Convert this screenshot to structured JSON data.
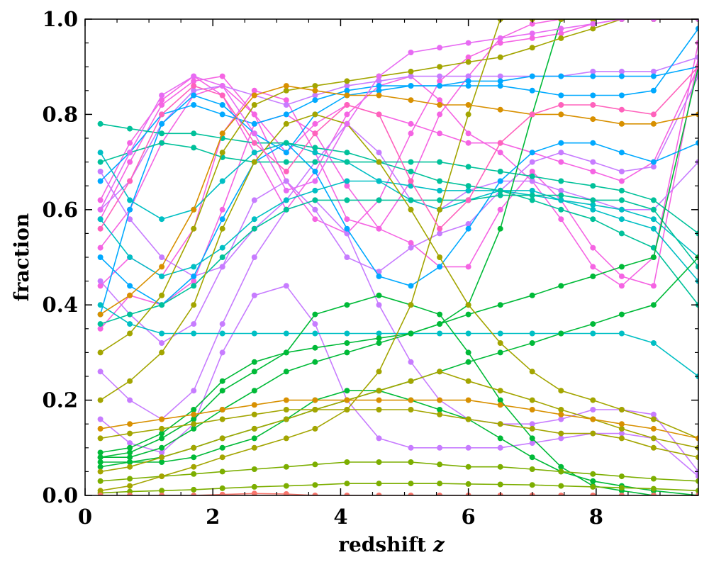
{
  "chart_data": {
    "type": "line",
    "title": "",
    "xlabel": "redshift",
    "xlabel_symbol": "z",
    "ylabel": "fraction",
    "xlim": [
      0,
      9.6
    ],
    "ylim": [
      0.0,
      1.0
    ],
    "xticks": [
      0,
      2,
      4,
      6,
      8
    ],
    "xtick_labels": [
      "0",
      "2",
      "4",
      "6",
      "8"
    ],
    "yticks": [
      0.0,
      0.2,
      0.4,
      0.6,
      0.8,
      1.0
    ],
    "ytick_labels": [
      "0.0",
      "0.2",
      "0.4",
      "0.6",
      "0.8",
      "1.0"
    ],
    "grid": false,
    "legend": false,
    "markers": "circle",
    "x": [
      0.24,
      0.7,
      1.2,
      1.7,
      2.15,
      2.65,
      3.15,
      3.6,
      4.1,
      4.6,
      5.1,
      5.55,
      6.0,
      6.5,
      7.0,
      7.45,
      7.95,
      8.4,
      8.9,
      9.6
    ],
    "series": [
      {
        "color": "#f564e3",
        "values": [
          0.58,
          0.7,
          0.82,
          0.87,
          0.88,
          0.8,
          0.66,
          0.58,
          0.55,
          0.62,
          0.76,
          0.87,
          0.92,
          0.95,
          0.96,
          0.97,
          0.99,
          1.0,
          1.0,
          1.0
        ]
      },
      {
        "color": "#f564e3",
        "values": [
          0.44,
          0.5,
          0.46,
          0.56,
          0.76,
          0.85,
          0.83,
          0.72,
          0.58,
          0.56,
          0.66,
          0.8,
          0.88,
          0.96,
          0.99,
          1.0,
          1.0,
          1.0,
          1.0,
          1.0
        ]
      },
      {
        "color": "#f564e3",
        "values": [
          0.35,
          0.42,
          0.4,
          0.45,
          0.6,
          0.78,
          0.8,
          0.76,
          0.65,
          0.56,
          0.53,
          0.48,
          0.48,
          0.6,
          0.68,
          0.62,
          0.52,
          0.46,
          0.44,
          0.92
        ]
      },
      {
        "color": "#f564e3",
        "values": [
          0.62,
          0.74,
          0.83,
          0.88,
          0.84,
          0.72,
          0.6,
          0.68,
          0.8,
          0.86,
          0.88,
          0.83,
          0.76,
          0.72,
          0.66,
          0.58,
          0.48,
          0.44,
          0.5,
          0.95
        ]
      },
      {
        "color": "#f564e3",
        "values": [
          0.52,
          0.6,
          0.74,
          0.84,
          0.86,
          0.8,
          0.72,
          0.78,
          0.82,
          0.8,
          0.78,
          0.76,
          0.74,
          0.74,
          0.72,
          0.7,
          0.68,
          0.66,
          0.7,
          0.9
        ]
      },
      {
        "color": "#c77cff",
        "values": [
          0.45,
          0.38,
          0.32,
          0.36,
          0.48,
          0.62,
          0.66,
          0.6,
          0.5,
          0.47,
          0.52,
          0.55,
          0.57,
          0.64,
          0.7,
          0.72,
          0.7,
          0.68,
          0.69,
          0.88
        ]
      },
      {
        "color": "#c77cff",
        "values": [
          0.6,
          0.66,
          0.78,
          0.85,
          0.86,
          0.84,
          0.82,
          0.84,
          0.86,
          0.87,
          0.88,
          0.88,
          0.88,
          0.88,
          0.88,
          0.88,
          0.89,
          0.89,
          0.89,
          0.92
        ]
      },
      {
        "color": "#c77cff",
        "values": [
          0.16,
          0.11,
          0.09,
          0.15,
          0.3,
          0.42,
          0.44,
          0.36,
          0.2,
          0.12,
          0.1,
          0.1,
          0.1,
          0.1,
          0.11,
          0.12,
          0.13,
          0.13,
          0.12,
          0.04
        ]
      },
      {
        "color": "#c77cff",
        "values": [
          0.26,
          0.2,
          0.16,
          0.22,
          0.36,
          0.5,
          0.6,
          0.62,
          0.55,
          0.4,
          0.28,
          0.2,
          0.16,
          0.15,
          0.15,
          0.16,
          0.18,
          0.18,
          0.17,
          0.05
        ]
      },
      {
        "color": "#c77cff",
        "values": [
          0.68,
          0.58,
          0.5,
          0.46,
          0.48,
          0.56,
          0.62,
          0.7,
          0.78,
          0.72,
          0.62,
          0.6,
          0.64,
          0.66,
          0.66,
          0.64,
          0.62,
          0.6,
          0.6,
          0.7
        ]
      },
      {
        "color": "#00a9ff",
        "values": [
          0.38,
          0.6,
          0.78,
          0.84,
          0.82,
          0.76,
          0.72,
          0.8,
          0.84,
          0.85,
          0.86,
          0.86,
          0.87,
          0.87,
          0.88,
          0.88,
          0.88,
          0.88,
          0.88,
          0.9
        ]
      },
      {
        "color": "#00a9ff",
        "values": [
          0.5,
          0.44,
          0.4,
          0.46,
          0.58,
          0.7,
          0.74,
          0.68,
          0.56,
          0.46,
          0.44,
          0.48,
          0.56,
          0.66,
          0.72,
          0.74,
          0.74,
          0.72,
          0.7,
          0.74
        ]
      },
      {
        "color": "#00a9ff",
        "values": [
          0.66,
          0.72,
          0.8,
          0.82,
          0.8,
          0.78,
          0.8,
          0.83,
          0.85,
          0.86,
          0.86,
          0.86,
          0.86,
          0.86,
          0.85,
          0.84,
          0.84,
          0.84,
          0.85,
          0.98
        ]
      },
      {
        "color": "#00bfc4",
        "values": [
          0.72,
          0.62,
          0.58,
          0.6,
          0.66,
          0.72,
          0.74,
          0.72,
          0.7,
          0.66,
          0.62,
          0.6,
          0.62,
          0.64,
          0.64,
          0.62,
          0.6,
          0.58,
          0.56,
          0.45
        ]
      },
      {
        "color": "#00bfc4",
        "values": [
          0.58,
          0.5,
          0.46,
          0.48,
          0.52,
          0.58,
          0.62,
          0.64,
          0.66,
          0.66,
          0.65,
          0.64,
          0.64,
          0.64,
          0.63,
          0.62,
          0.61,
          0.6,
          0.58,
          0.5
        ]
      },
      {
        "color": "#00bfc4",
        "values": [
          0.4,
          0.36,
          0.34,
          0.34,
          0.34,
          0.34,
          0.34,
          0.34,
          0.34,
          0.34,
          0.34,
          0.34,
          0.34,
          0.34,
          0.34,
          0.34,
          0.34,
          0.34,
          0.32,
          0.25
        ]
      },
      {
        "color": "#00c19a",
        "values": [
          0.78,
          0.77,
          0.76,
          0.76,
          0.75,
          0.74,
          0.74,
          0.73,
          0.72,
          0.7,
          0.68,
          0.66,
          0.65,
          0.64,
          0.62,
          0.6,
          0.58,
          0.55,
          0.52,
          0.4
        ]
      },
      {
        "color": "#00c19a",
        "values": [
          0.7,
          0.72,
          0.74,
          0.73,
          0.71,
          0.7,
          0.7,
          0.7,
          0.7,
          0.7,
          0.7,
          0.7,
          0.69,
          0.68,
          0.67,
          0.66,
          0.65,
          0.64,
          0.62,
          0.55
        ]
      },
      {
        "color": "#00c19a",
        "values": [
          0.36,
          0.38,
          0.4,
          0.44,
          0.5,
          0.56,
          0.6,
          0.62,
          0.62,
          0.62,
          0.62,
          0.62,
          0.62,
          0.63,
          0.63,
          0.63,
          0.62,
          0.62,
          0.6,
          0.48
        ]
      },
      {
        "color": "#00ba38",
        "values": [
          0.08,
          0.08,
          0.1,
          0.14,
          0.18,
          0.22,
          0.26,
          0.28,
          0.3,
          0.32,
          0.34,
          0.36,
          0.4,
          0.56,
          0.8,
          1.0,
          1.0,
          1.0,
          1.0,
          1.0
        ]
      },
      {
        "color": "#00ba38",
        "values": [
          0.06,
          0.07,
          0.08,
          0.1,
          0.12,
          0.14,
          0.16,
          0.18,
          0.2,
          0.22,
          0.24,
          0.26,
          0.28,
          0.3,
          0.32,
          0.34,
          0.36,
          0.38,
          0.4,
          0.5
        ]
      },
      {
        "color": "#00ba38",
        "values": [
          0.09,
          0.1,
          0.13,
          0.18,
          0.24,
          0.28,
          0.3,
          0.31,
          0.32,
          0.33,
          0.34,
          0.36,
          0.38,
          0.4,
          0.42,
          0.44,
          0.46,
          0.48,
          0.5,
          0.9
        ]
      },
      {
        "color": "#00ba38",
        "values": [
          0.07,
          0.07,
          0.07,
          0.08,
          0.1,
          0.12,
          0.16,
          0.2,
          0.22,
          0.22,
          0.2,
          0.18,
          0.16,
          0.12,
          0.08,
          0.05,
          0.03,
          0.02,
          0.01,
          0.0
        ]
      },
      {
        "color": "#00ba38",
        "values": [
          0.08,
          0.09,
          0.12,
          0.16,
          0.22,
          0.26,
          0.3,
          0.38,
          0.4,
          0.42,
          0.4,
          0.38,
          0.3,
          0.2,
          0.12,
          0.06,
          0.02,
          0.01,
          0.0,
          0.0
        ]
      },
      {
        "color": "#7cae00",
        "values": [
          0.03,
          0.035,
          0.04,
          0.045,
          0.05,
          0.055,
          0.06,
          0.065,
          0.07,
          0.07,
          0.07,
          0.065,
          0.06,
          0.06,
          0.055,
          0.05,
          0.045,
          0.04,
          0.035,
          0.03
        ]
      },
      {
        "color": "#7cae00",
        "values": [
          0.005,
          0.008,
          0.01,
          0.012,
          0.015,
          0.018,
          0.02,
          0.022,
          0.025,
          0.025,
          0.025,
          0.025,
          0.024,
          0.023,
          0.022,
          0.02,
          0.018,
          0.016,
          0.014,
          0.01
        ]
      },
      {
        "color": "#a3a500",
        "values": [
          0.12,
          0.13,
          0.14,
          0.15,
          0.16,
          0.17,
          0.18,
          0.18,
          0.18,
          0.18,
          0.18,
          0.17,
          0.16,
          0.15,
          0.14,
          0.13,
          0.13,
          0.12,
          0.1,
          0.08
        ]
      },
      {
        "color": "#a3a500",
        "values": [
          0.3,
          0.34,
          0.42,
          0.56,
          0.72,
          0.82,
          0.85,
          0.86,
          0.87,
          0.88,
          0.89,
          0.9,
          0.91,
          0.92,
          0.94,
          0.96,
          0.98,
          1.0,
          1.0,
          1.0
        ]
      },
      {
        "color": "#a3a500",
        "values": [
          0.05,
          0.06,
          0.08,
          0.1,
          0.12,
          0.14,
          0.16,
          0.18,
          0.2,
          0.22,
          0.24,
          0.26,
          0.24,
          0.22,
          0.2,
          0.18,
          0.16,
          0.14,
          0.12,
          0.1
        ]
      },
      {
        "color": "#a3a500",
        "values": [
          0.2,
          0.24,
          0.3,
          0.4,
          0.56,
          0.7,
          0.78,
          0.8,
          0.78,
          0.7,
          0.6,
          0.5,
          0.4,
          0.32,
          0.26,
          0.22,
          0.2,
          0.18,
          0.16,
          0.12
        ]
      },
      {
        "color": "#a3a500",
        "values": [
          0.01,
          0.02,
          0.04,
          0.06,
          0.08,
          0.1,
          0.12,
          0.14,
          0.18,
          0.26,
          0.4,
          0.6,
          0.8,
          1.0,
          1.0,
          1.0,
          1.0,
          1.0,
          1.0,
          1.0
        ]
      },
      {
        "color": "#d89000",
        "values": [
          0.14,
          0.15,
          0.16,
          0.17,
          0.18,
          0.19,
          0.2,
          0.2,
          0.2,
          0.2,
          0.2,
          0.2,
          0.2,
          0.19,
          0.18,
          0.17,
          0.16,
          0.15,
          0.14,
          0.12
        ]
      },
      {
        "color": "#d89000",
        "values": [
          0.38,
          0.42,
          0.48,
          0.6,
          0.76,
          0.84,
          0.86,
          0.85,
          0.84,
          0.84,
          0.83,
          0.82,
          0.82,
          0.81,
          0.8,
          0.8,
          0.79,
          0.78,
          0.78,
          0.8
        ]
      },
      {
        "color": "#e76bf3",
        "values": [
          0.6,
          0.72,
          0.84,
          0.88,
          0.86,
          0.76,
          0.64,
          0.66,
          0.78,
          0.88,
          0.93,
          0.94,
          0.95,
          0.96,
          0.97,
          0.98,
          0.99,
          1.0,
          1.0,
          1.0
        ]
      },
      {
        "color": "#ff62bc",
        "values": [
          0.56,
          0.66,
          0.8,
          0.86,
          0.84,
          0.74,
          0.68,
          0.76,
          0.82,
          0.8,
          0.66,
          0.56,
          0.62,
          0.74,
          0.8,
          0.82,
          0.82,
          0.81,
          0.8,
          0.9
        ]
      },
      {
        "color": "#f8766d",
        "values": [
          0.0,
          0.0,
          0.0,
          0.0,
          0.002,
          0.004,
          0.003,
          0.0,
          0.0,
          0.0,
          0.0,
          0.0,
          0.0,
          0.0,
          0.0,
          0.0,
          0.0,
          0.0,
          0.0,
          0.0
        ]
      }
    ]
  }
}
